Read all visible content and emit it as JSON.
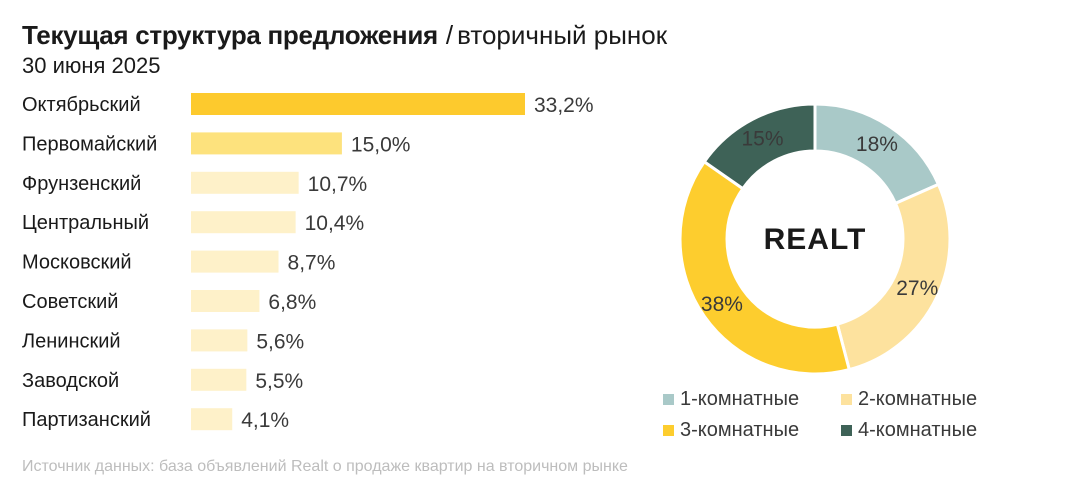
{
  "header": {
    "title_bold": "Текущая структура предложения",
    "title_sep": "/",
    "title_light": "вторичный рынок",
    "date": "30 июня 2025"
  },
  "colors": {
    "bar_top": "#fdca2d",
    "bar_second": "#fde27d",
    "bar_rest": "#fef1c9",
    "one_room": "#a9c9c8",
    "two_room": "#fde29e",
    "three_room": "#fdcd2e",
    "four_room": "#3e6257"
  },
  "chart_data": [
    {
      "type": "bar",
      "orientation": "horizontal",
      "categories": [
        "Октябрьский",
        "Первомайский",
        "Фрунзенский",
        "Центральный",
        "Московский",
        "Советский",
        "Ленинский",
        "Заводской",
        "Партизанский"
      ],
      "values": [
        33.2,
        15.0,
        10.7,
        10.4,
        8.7,
        6.8,
        5.6,
        5.5,
        4.1
      ],
      "value_labels": [
        "33,2%",
        "15,0%",
        "10,7%",
        "10,4%",
        "8,7%",
        "6,8%",
        "5,6%",
        "5,5%",
        "4,1%"
      ],
      "unit": "%"
    },
    {
      "type": "pie",
      "style": "donut",
      "center_text": "REALT",
      "labels": [
        "1-комнатные",
        "2-комнатные",
        "3-комнатные",
        "4-комнатные"
      ],
      "values": [
        18,
        27,
        38,
        15
      ],
      "value_labels": [
        "18%",
        "27%",
        "38%",
        "15%"
      ],
      "legend_placement": "bottom"
    }
  ],
  "legend": {
    "items": [
      {
        "label": "1-комнатные",
        "color": "#a9c9c8"
      },
      {
        "label": "2-комнатные",
        "color": "#fde29e"
      },
      {
        "label": "3-комнатные",
        "color": "#fdcd2e"
      },
      {
        "label": "4-комнатные",
        "color": "#3e6257"
      }
    ]
  },
  "footer": {
    "source": "Источник данных: база объявлений Realt о продаже квартир на вторичном рынке"
  }
}
